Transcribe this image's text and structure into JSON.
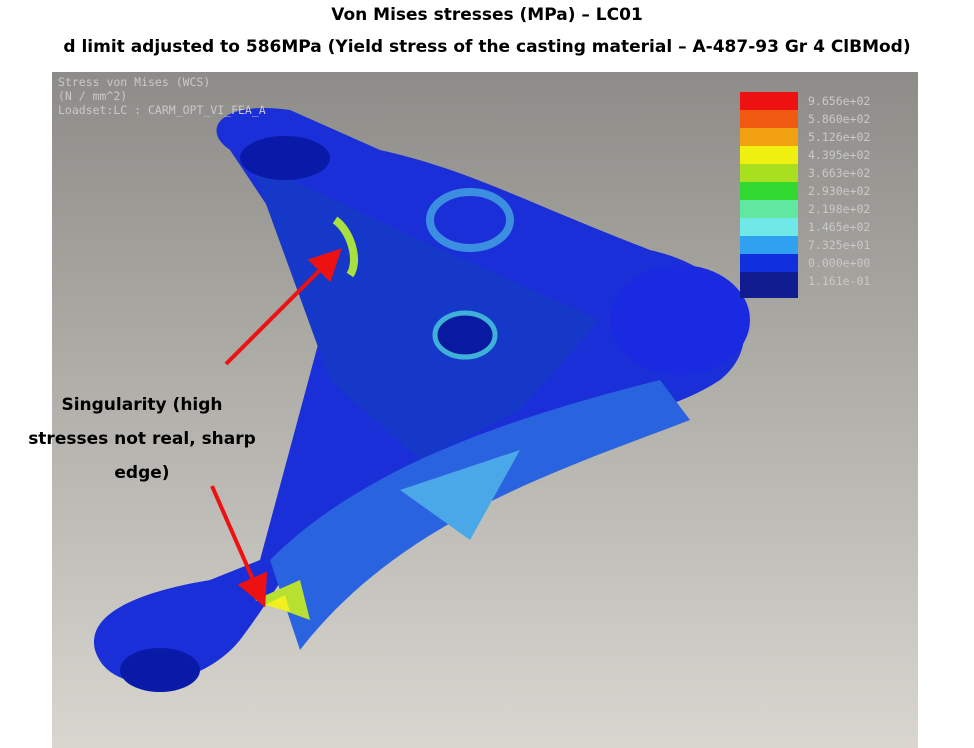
{
  "header": {
    "title": "Von Mises stresses (MPa) – LC01",
    "subtitle": "d limit adjusted to 586MPa (Yield stress of the casting material – A-487-93 Gr 4 ClBMod)"
  },
  "viewport": {
    "info": [
      "Stress von Mises (WCS)",
      "(N / mm^2)",
      "Loadset:LC :   CARM_OPT_VI_FEA_A"
    ],
    "legend": [
      "9.656e+02",
      "5.860e+02",
      "5.126e+02",
      "4.395e+02",
      "3.663e+02",
      "2.930e+02",
      "2.198e+02",
      "1.465e+02",
      "7.325e+01",
      "0.000e+00",
      "1.161e-01"
    ]
  },
  "annotation": {
    "lines": [
      "Singularity (high",
      "stresses not real, sharp",
      "edge)"
    ]
  }
}
